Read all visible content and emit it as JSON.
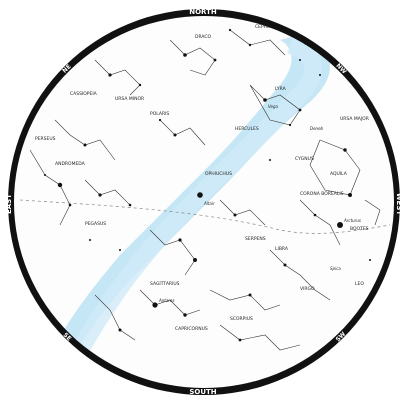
{
  "sky_chart": {
    "directions": {
      "north": "NORTH",
      "south": "SOUTH",
      "east": "EAST",
      "west": "WEST",
      "ne": "NE",
      "nw": "NW",
      "se": "SE",
      "sw": "SW"
    },
    "labels": {
      "draco": "DRACO",
      "cepheus": "CEPHEUS",
      "cassiopeia": "CASSIOPEIA",
      "ursa_minor": "URSA MINOR",
      "polaris": "POLARIS",
      "lyra": "LYRA",
      "hercules": "HERCULES",
      "cygnus": "CYGNUS",
      "aquila": "AQUILA",
      "ophiuchus": "OPHIUCHUS",
      "serpens": "SERPENS",
      "scorpius": "SCORPIUS",
      "sagittarius": "SAGITTARIUS",
      "libra": "LIBRA",
      "virgo": "VIRGO",
      "capricornus": "CAPRICORNUS",
      "andromeda": "ANDROMEDA",
      "pegasus": "PEGASUS",
      "perseus": "PERSEUS",
      "bootes": "BOOTES",
      "corona_borealis": "CORONA BOREALIS",
      "ursa_major": "URSA MAJOR",
      "leo": "LEO",
      "vega": "Vega",
      "deneb": "Deneb",
      "altair": "Altair",
      "arcturus": "Arcturus",
      "antares": "Antares",
      "spica": "Spica"
    }
  }
}
